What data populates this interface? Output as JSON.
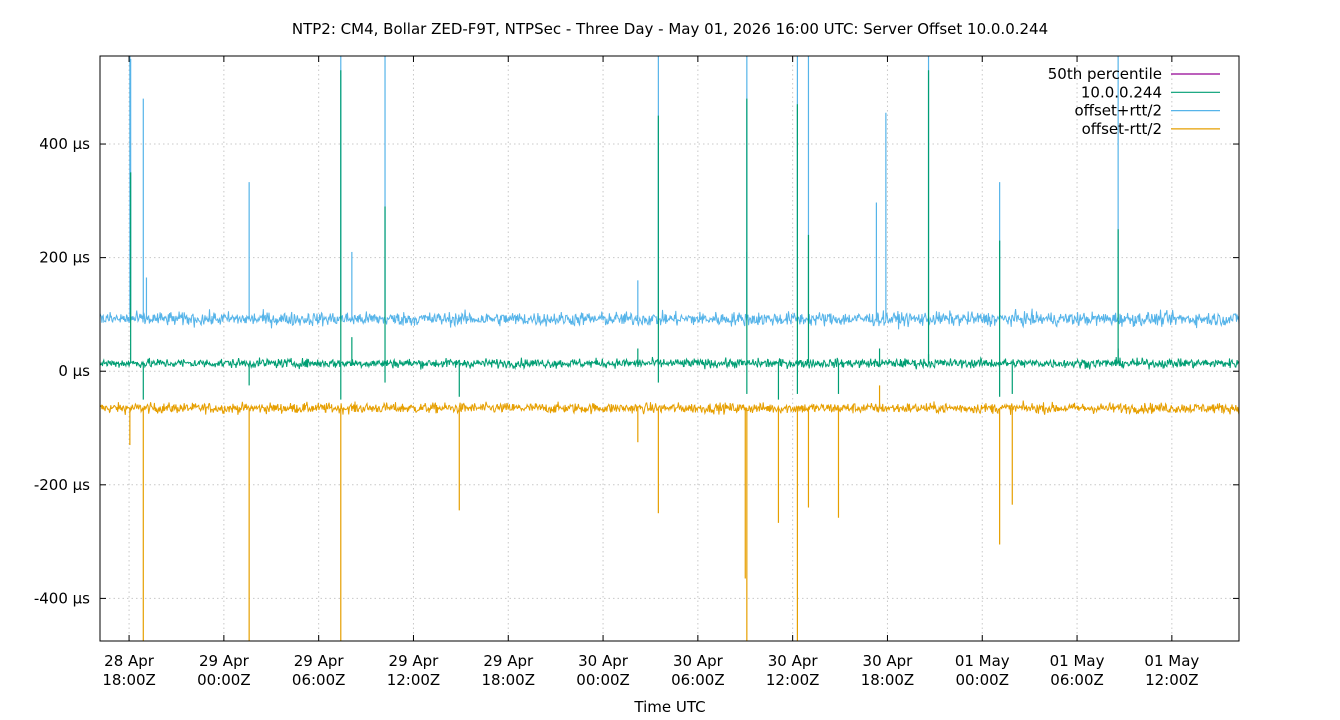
{
  "chart_data": {
    "type": "line",
    "title": "NTP2: CM4, Bollar ZED-F9T, NTPSec - Three Day - May 01, 2026 16:00 UTC: Server Offset 10.0.0.244",
    "xlabel": "Time UTC",
    "ylabel": "",
    "x_unit": "hours",
    "xlim": [
      -1.84,
      70.25
    ],
    "ylim": [
      -475,
      555
    ],
    "grid": true,
    "legend_position": "top-right",
    "x_ticks": [
      {
        "x": 0,
        "line1": "28 Apr",
        "line2": "18:00Z"
      },
      {
        "x": 6,
        "line1": "29 Apr",
        "line2": "00:00Z"
      },
      {
        "x": 12,
        "line1": "29 Apr",
        "line2": "06:00Z"
      },
      {
        "x": 18,
        "line1": "29 Apr",
        "line2": "12:00Z"
      },
      {
        "x": 24,
        "line1": "29 Apr",
        "line2": "18:00Z"
      },
      {
        "x": 30,
        "line1": "30 Apr",
        "line2": "00:00Z"
      },
      {
        "x": 36,
        "line1": "30 Apr",
        "line2": "06:00Z"
      },
      {
        "x": 42,
        "line1": "30 Apr",
        "line2": "12:00Z"
      },
      {
        "x": 48,
        "line1": "30 Apr",
        "line2": "18:00Z"
      },
      {
        "x": 54,
        "line1": "01 May",
        "line2": "00:00Z"
      },
      {
        "x": 60,
        "line1": "01 May",
        "line2": "06:00Z"
      },
      {
        "x": 66,
        "line1": "01 May",
        "line2": "12:00Z"
      }
    ],
    "y_ticks": [
      {
        "y": 400,
        "label": "400 µs"
      },
      {
        "y": 200,
        "label": "200 µs"
      },
      {
        "y": 0,
        "label": "0 µs"
      },
      {
        "y": -200,
        "label": "-200 µs"
      },
      {
        "y": -400,
        "label": "-400 µs"
      }
    ],
    "series": [
      {
        "name": "50th percentile",
        "color": "#940094",
        "baseline": 14,
        "noise": 0,
        "spikes": []
      },
      {
        "name": "10.0.0.244",
        "color": "#009e73",
        "baseline": 14,
        "noise": 8,
        "spikes": [
          {
            "x": 0.1,
            "y": 350
          },
          {
            "x": 0.9,
            "y": -50
          },
          {
            "x": 7.6,
            "y": -25
          },
          {
            "x": 13.4,
            "y": -50
          },
          {
            "x": 13.4,
            "y": 530
          },
          {
            "x": 14.1,
            "y": 60
          },
          {
            "x": 16.2,
            "y": -20
          },
          {
            "x": 16.2,
            "y": 290
          },
          {
            "x": 20.9,
            "y": -45
          },
          {
            "x": 32.2,
            "y": 40
          },
          {
            "x": 33.5,
            "y": 450
          },
          {
            "x": 33.5,
            "y": -20
          },
          {
            "x": 39.1,
            "y": 480
          },
          {
            "x": 39.1,
            "y": -40
          },
          {
            "x": 41.1,
            "y": -50
          },
          {
            "x": 42.3,
            "y": 470
          },
          {
            "x": 42.3,
            "y": -40
          },
          {
            "x": 43.0,
            "y": 240
          },
          {
            "x": 44.9,
            "y": -40
          },
          {
            "x": 47.5,
            "y": 40
          },
          {
            "x": 50.6,
            "y": 530
          },
          {
            "x": 50.6,
            "y": 30
          },
          {
            "x": 55.1,
            "y": 230
          },
          {
            "x": 55.1,
            "y": -45
          },
          {
            "x": 55.9,
            "y": -40
          },
          {
            "x": 62.6,
            "y": 250
          },
          {
            "x": 62.6,
            "y": 40
          }
        ]
      },
      {
        "name": "offset+rtt/2",
        "color": "#56b4e9",
        "baseline": 92,
        "noise": 12,
        "spikes": [
          {
            "x": 0.05,
            "y": 555
          },
          {
            "x": 0.1,
            "y": 550
          },
          {
            "x": 0.9,
            "y": 480
          },
          {
            "x": 1.1,
            "y": 165
          },
          {
            "x": 7.6,
            "y": 333
          },
          {
            "x": 13.4,
            "y": 555
          },
          {
            "x": 14.1,
            "y": 210
          },
          {
            "x": 16.2,
            "y": 555
          },
          {
            "x": 32.2,
            "y": 160
          },
          {
            "x": 33.5,
            "y": 555
          },
          {
            "x": 39.1,
            "y": 555
          },
          {
            "x": 39.1,
            "y": 210
          },
          {
            "x": 42.3,
            "y": 555
          },
          {
            "x": 43.0,
            "y": 555
          },
          {
            "x": 47.3,
            "y": 297
          },
          {
            "x": 47.9,
            "y": 455
          },
          {
            "x": 50.6,
            "y": 555
          },
          {
            "x": 55.1,
            "y": 333
          },
          {
            "x": 62.6,
            "y": 555
          }
        ]
      },
      {
        "name": "offset-rtt/2",
        "color": "#e69f00",
        "baseline": -65,
        "noise": 9,
        "spikes": [
          {
            "x": 0.05,
            "y": -130
          },
          {
            "x": 0.9,
            "y": -475
          },
          {
            "x": 7.6,
            "y": -475
          },
          {
            "x": 13.4,
            "y": -475
          },
          {
            "x": 20.9,
            "y": -245
          },
          {
            "x": 32.2,
            "y": -125
          },
          {
            "x": 33.5,
            "y": -250
          },
          {
            "x": 39.0,
            "y": -365
          },
          {
            "x": 39.1,
            "y": -475
          },
          {
            "x": 41.1,
            "y": -267
          },
          {
            "x": 42.3,
            "y": -475
          },
          {
            "x": 43.0,
            "y": -240
          },
          {
            "x": 44.9,
            "y": -258
          },
          {
            "x": 47.5,
            "y": -25
          },
          {
            "x": 55.1,
            "y": -305
          },
          {
            "x": 55.9,
            "y": -235
          }
        ]
      }
    ]
  }
}
